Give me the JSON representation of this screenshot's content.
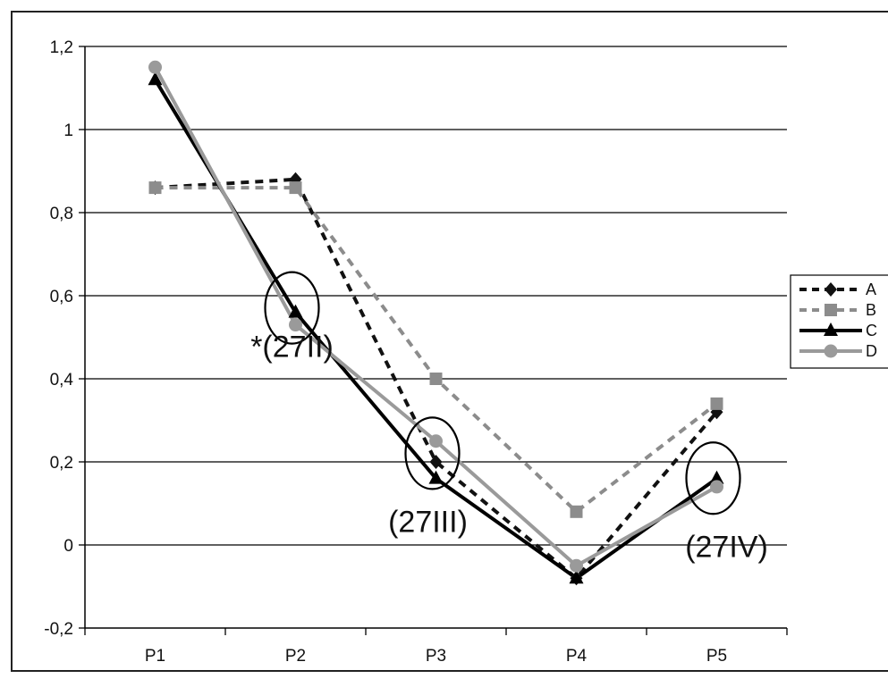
{
  "chart_data": {
    "type": "line",
    "title": "",
    "xlabel": "",
    "ylabel": "",
    "categories": [
      "P1",
      "P2",
      "P3",
      "P4",
      "P5"
    ],
    "ylim": [
      -0.2,
      1.2
    ],
    "yticks": [
      "-0,2",
      "0",
      "0,2",
      "0,4",
      "0,6",
      "0,8",
      "1",
      "1,2"
    ],
    "ytick_values": [
      -0.2,
      0,
      0.2,
      0.4,
      0.6,
      0.8,
      1.0,
      1.2
    ],
    "grid": true,
    "legend_position": "right",
    "series": [
      {
        "name": "A",
        "values": [
          0.86,
          0.88,
          0.2,
          -0.08,
          0.32
        ],
        "color": "#111111",
        "dash": "dotted",
        "marker": "diamond"
      },
      {
        "name": "B",
        "values": [
          0.86,
          0.86,
          0.4,
          0.08,
          0.34
        ],
        "color": "#8c8c8c",
        "dash": "dotted",
        "marker": "square"
      },
      {
        "name": "C",
        "values": [
          1.12,
          0.56,
          0.16,
          -0.08,
          0.16
        ],
        "color": "#000000",
        "dash": "solid",
        "marker": "triangle"
      },
      {
        "name": "D",
        "values": [
          1.15,
          0.53,
          0.25,
          -0.05,
          0.14
        ],
        "color": "#9a9a9a",
        "dash": "solid",
        "marker": "circle"
      }
    ],
    "annotations": [
      {
        "category": "P2",
        "value": 0.56,
        "label": "*(27II)"
      },
      {
        "category": "P3",
        "value": 0.21,
        "label": "(27III)"
      },
      {
        "category": "P5",
        "value": 0.15,
        "label": "(27IV)"
      }
    ]
  }
}
